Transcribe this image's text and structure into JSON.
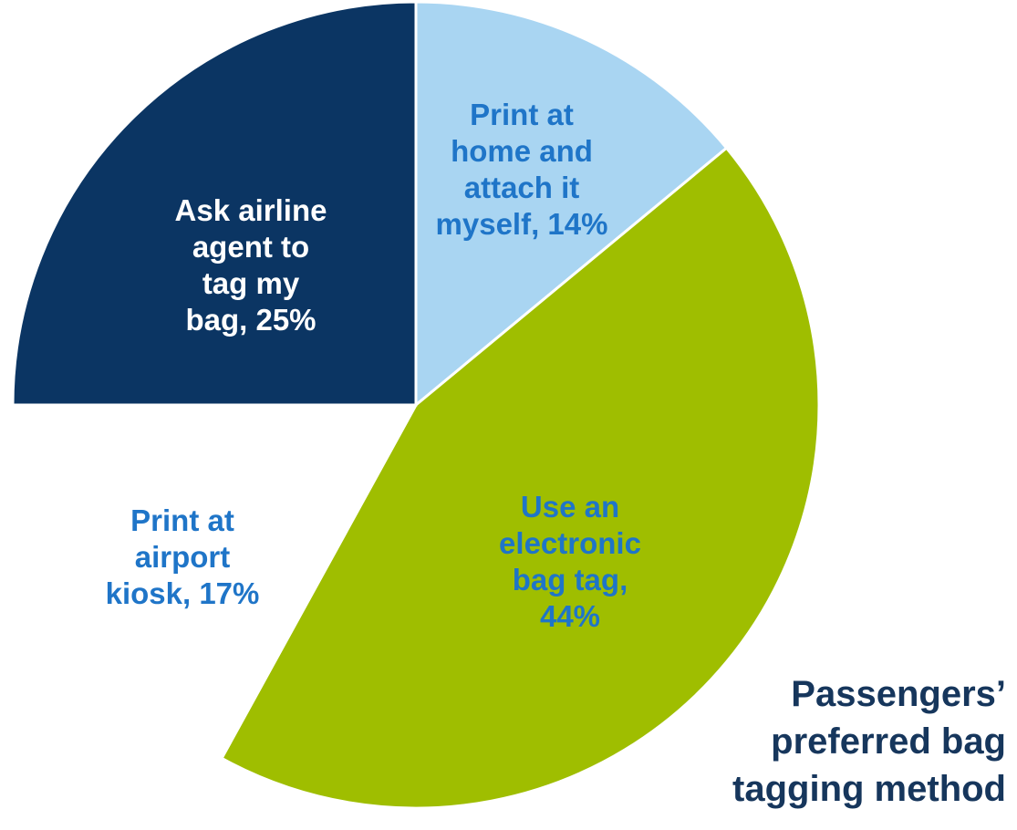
{
  "chart_data": {
    "type": "pie",
    "title_lines": [
      "Passengers’",
      "preferred bag",
      "tagging method"
    ],
    "slices": [
      {
        "label": "Print at home and attach it myself",
        "value": 14,
        "color": "#a9d5f2",
        "label_color": "#1f75c8",
        "label_lines": [
          "Print at",
          "home and",
          "attach it",
          "myself, 14%"
        ]
      },
      {
        "label": "Use an electronic bag tag",
        "value": 44,
        "color": "#9fbe00",
        "label_color": "#1f75c8",
        "label_lines": [
          "Use an",
          "electronic",
          "bag tag,",
          "44%"
        ]
      },
      {
        "label": "Print at airport kiosk",
        "value": 17,
        "color": "#ffffff",
        "label_color": "#1f75c8",
        "label_lines": [
          "Print at",
          "airport",
          "kiosk, 17%"
        ]
      },
      {
        "label": "Ask airline agent to tag my bag",
        "value": 25,
        "color": "#0b3563",
        "label_color": "#ffffff",
        "label_lines": [
          "Ask airline",
          "agent to",
          "tag my",
          "bag, 25%"
        ]
      }
    ],
    "start_angle_deg": 0,
    "direction": "clockwise",
    "title_color": "#16365c",
    "background": "#ffffff"
  }
}
